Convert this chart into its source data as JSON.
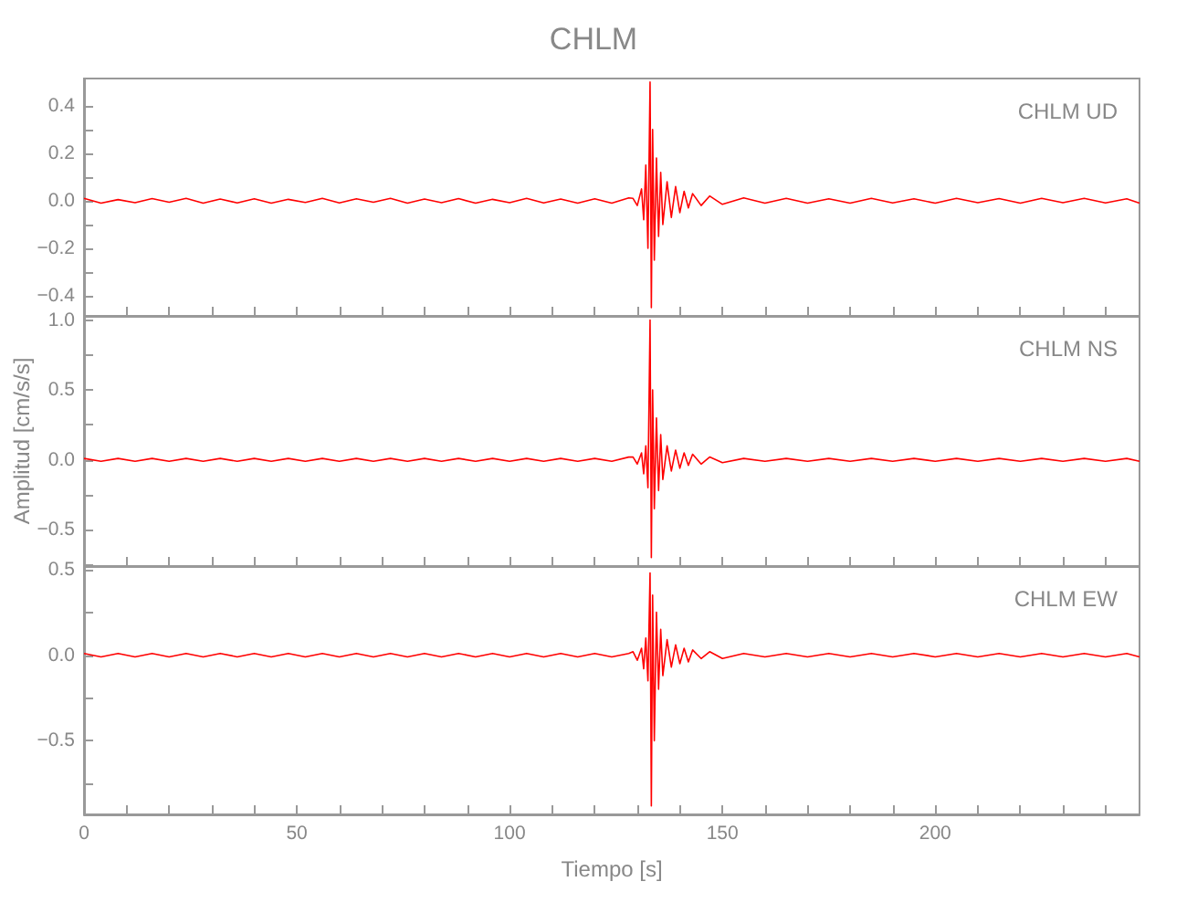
{
  "chart_data": [
    {
      "type": "line",
      "title": "CHLM",
      "annotations": [
        "CHLM UD"
      ],
      "tick_labels": "y",
      "grid": false,
      "x": [
        0,
        4,
        8,
        12,
        16,
        20,
        24,
        28,
        32,
        36,
        40,
        44,
        48,
        52,
        56,
        60,
        64,
        68,
        72,
        76,
        80,
        84,
        88,
        92,
        96,
        100,
        104,
        108,
        112,
        116,
        120,
        124,
        128,
        129,
        130,
        131,
        131.5,
        132,
        132.5,
        133,
        133.3,
        133.6,
        134,
        134.5,
        135,
        135.5,
        136,
        137,
        138,
        139,
        140,
        141,
        142,
        143,
        145,
        147,
        150,
        155,
        160,
        165,
        170,
        175,
        180,
        185,
        190,
        195,
        200,
        205,
        210,
        215,
        220,
        225,
        230,
        235,
        240,
        245,
        248
      ],
      "xlim": [
        0,
        248
      ],
      "xticks": [
        {
          "value": 0,
          "label": null
        },
        {
          "value": 10,
          "label": null
        },
        {
          "value": 20,
          "label": null
        },
        {
          "value": 30,
          "label": null
        },
        {
          "value": 40,
          "label": null
        },
        {
          "value": 50,
          "label": null
        },
        {
          "value": 60,
          "label": null
        },
        {
          "value": 70,
          "label": null
        },
        {
          "value": 80,
          "label": null
        },
        {
          "value": 90,
          "label": null
        },
        {
          "value": 100,
          "label": null
        },
        {
          "value": 110,
          "label": null
        },
        {
          "value": 120,
          "label": null
        },
        {
          "value": 130,
          "label": null
        },
        {
          "value": 140,
          "label": null
        },
        {
          "value": 150,
          "label": null
        },
        {
          "value": 160,
          "label": null
        },
        {
          "value": 170,
          "label": null
        },
        {
          "value": 180,
          "label": null
        },
        {
          "value": 190,
          "label": null
        },
        {
          "value": 200,
          "label": null
        },
        {
          "value": 210,
          "label": null
        },
        {
          "value": 220,
          "label": null
        },
        {
          "value": 230,
          "label": null
        },
        {
          "value": 240,
          "label": null
        }
      ],
      "ylim": [
        -0.485,
        0.515
      ],
      "yticks": [
        {
          "value": -0.4,
          "label": "−0.4"
        },
        {
          "value": -0.3,
          "label": null
        },
        {
          "value": -0.2,
          "label": "−0.2"
        },
        {
          "value": -0.1,
          "label": null
        },
        {
          "value": 0,
          "label": "0.0"
        },
        {
          "value": 0.1,
          "label": null
        },
        {
          "value": 0.2,
          "label": "0.2"
        },
        {
          "value": 0.3,
          "label": null
        },
        {
          "value": 0.4,
          "label": "0.4"
        }
      ],
      "series": [
        {
          "color": "#ff0000",
          "values": [
            0.01,
            -0.01,
            0.005,
            -0.008,
            0.009,
            -0.006,
            0.01,
            -0.01,
            0.007,
            -0.009,
            0.008,
            -0.01,
            0.006,
            -0.007,
            0.01,
            -0.009,
            0.008,
            -0.006,
            0.01,
            -0.01,
            0.007,
            -0.008,
            0.009,
            -0.01,
            0.006,
            -0.008,
            0.01,
            -0.009,
            0.007,
            -0.01,
            0.008,
            -0.01,
            0.012,
            0.01,
            -0.02,
            0.05,
            -0.08,
            0.15,
            -0.2,
            0.5,
            -0.45,
            0.3,
            -0.25,
            0.18,
            -0.15,
            0.12,
            -0.1,
            0.08,
            -0.07,
            0.06,
            -0.05,
            0.04,
            -0.03,
            0.03,
            -0.02,
            0.02,
            -0.015,
            0.012,
            -0.01,
            0.01,
            -0.01,
            0.008,
            -0.01,
            0.01,
            -0.009,
            0.008,
            -0.01,
            0.01,
            -0.008,
            0.009,
            -0.01,
            0.01,
            -0.008,
            0.01,
            -0.009,
            0.008,
            -0.01
          ]
        }
      ]
    },
    {
      "type": "line",
      "annotations": [
        "CHLM NS"
      ],
      "ylabel": "Amplitud [cm/s/s]",
      "tick_labels": "y",
      "grid": false,
      "x": [
        0,
        4,
        8,
        12,
        16,
        20,
        24,
        28,
        32,
        36,
        40,
        44,
        48,
        52,
        56,
        60,
        64,
        68,
        72,
        76,
        80,
        84,
        88,
        92,
        96,
        100,
        104,
        108,
        112,
        116,
        120,
        124,
        128,
        129,
        130,
        131,
        131.5,
        132,
        132.5,
        133,
        133.3,
        133.6,
        134,
        134.5,
        135,
        135.5,
        136,
        137,
        138,
        139,
        140,
        141,
        142,
        143,
        145,
        147,
        150,
        155,
        160,
        165,
        170,
        175,
        180,
        185,
        190,
        195,
        200,
        205,
        210,
        215,
        220,
        225,
        230,
        235,
        240,
        245,
        248
      ],
      "xlim": [
        0,
        248
      ],
      "xticks": [
        {
          "value": 0,
          "label": null
        },
        {
          "value": 10,
          "label": null
        },
        {
          "value": 20,
          "label": null
        },
        {
          "value": 30,
          "label": null
        },
        {
          "value": 40,
          "label": null
        },
        {
          "value": 50,
          "label": null
        },
        {
          "value": 60,
          "label": null
        },
        {
          "value": 70,
          "label": null
        },
        {
          "value": 80,
          "label": null
        },
        {
          "value": 90,
          "label": null
        },
        {
          "value": 100,
          "label": null
        },
        {
          "value": 110,
          "label": null
        },
        {
          "value": 120,
          "label": null
        },
        {
          "value": 130,
          "label": null
        },
        {
          "value": 140,
          "label": null
        },
        {
          "value": 150,
          "label": null
        },
        {
          "value": 160,
          "label": null
        },
        {
          "value": 170,
          "label": null
        },
        {
          "value": 180,
          "label": null
        },
        {
          "value": 190,
          "label": null
        },
        {
          "value": 200,
          "label": null
        },
        {
          "value": 210,
          "label": null
        },
        {
          "value": 220,
          "label": null
        },
        {
          "value": 230,
          "label": null
        },
        {
          "value": 240,
          "label": null
        }
      ],
      "ylim": [
        -0.76,
        1.03
      ],
      "yticks": [
        {
          "value": -0.75,
          "label": null
        },
        {
          "value": -0.5,
          "label": "−0.5"
        },
        {
          "value": -0.25,
          "label": null
        },
        {
          "value": 0,
          "label": "0.0"
        },
        {
          "value": 0.25,
          "label": null
        },
        {
          "value": 0.5,
          "label": "0.5"
        },
        {
          "value": 0.75,
          "label": null
        },
        {
          "value": 1,
          "label": "1.0"
        }
      ],
      "series": [
        {
          "color": "#ff0000",
          "values": [
            0.01,
            -0.01,
            0.01,
            -0.01,
            0.01,
            -0.01,
            0.01,
            -0.01,
            0.01,
            -0.01,
            0.01,
            -0.01,
            0.01,
            -0.01,
            0.01,
            -0.01,
            0.01,
            -0.01,
            0.01,
            -0.01,
            0.01,
            -0.01,
            0.01,
            -0.01,
            0.01,
            -0.01,
            0.01,
            -0.01,
            0.01,
            -0.01,
            0.01,
            -0.01,
            0.02,
            0.02,
            -0.03,
            0.05,
            -0.1,
            0.1,
            -0.2,
            1.0,
            -0.7,
            0.5,
            -0.35,
            0.3,
            -0.22,
            0.18,
            -0.14,
            0.1,
            -0.08,
            0.07,
            -0.06,
            0.05,
            -0.04,
            0.04,
            -0.03,
            0.02,
            -0.02,
            0.01,
            -0.01,
            0.01,
            -0.01,
            0.01,
            -0.01,
            0.01,
            -0.01,
            0.01,
            -0.01,
            0.01,
            -0.01,
            0.01,
            -0.01,
            0.01,
            -0.01,
            0.01,
            -0.01,
            0.01,
            -0.01
          ]
        }
      ]
    },
    {
      "type": "line",
      "annotations": [
        "CHLM EW"
      ],
      "xlabel": "Tiempo [s]",
      "grid": false,
      "x": [
        0,
        4,
        8,
        12,
        16,
        20,
        24,
        28,
        32,
        36,
        40,
        44,
        48,
        52,
        56,
        60,
        64,
        68,
        72,
        76,
        80,
        84,
        88,
        92,
        96,
        100,
        104,
        108,
        112,
        116,
        120,
        124,
        128,
        129,
        130,
        131,
        131.5,
        132,
        132.5,
        133,
        133.3,
        133.6,
        134,
        134.5,
        135,
        135.5,
        136,
        137,
        138,
        139,
        140,
        141,
        142,
        143,
        145,
        147,
        150,
        155,
        160,
        165,
        170,
        175,
        180,
        185,
        190,
        195,
        200,
        205,
        210,
        215,
        220,
        225,
        230,
        235,
        240,
        245,
        248
      ],
      "xlim": [
        0,
        248
      ],
      "xticks": [
        0,
        {
          "value": 10,
          "label": null
        },
        {
          "value": 20,
          "label": null
        },
        {
          "value": 30,
          "label": null
        },
        {
          "value": 40,
          "label": null
        },
        50,
        {
          "value": 60,
          "label": null
        },
        {
          "value": 70,
          "label": null
        },
        {
          "value": 80,
          "label": null
        },
        {
          "value": 90,
          "label": null
        },
        100,
        {
          "value": 110,
          "label": null
        },
        {
          "value": 120,
          "label": null
        },
        {
          "value": 130,
          "label": null
        },
        {
          "value": 140,
          "label": null
        },
        150,
        {
          "value": 160,
          "label": null
        },
        {
          "value": 170,
          "label": null
        },
        {
          "value": 180,
          "label": null
        },
        {
          "value": 190,
          "label": null
        },
        200,
        {
          "value": 210,
          "label": null
        },
        {
          "value": 220,
          "label": null
        },
        {
          "value": 230,
          "label": null
        },
        {
          "value": 240,
          "label": null
        }
      ],
      "ylim": [
        -0.93,
        0.52
      ],
      "yticks": [
        {
          "value": -0.75,
          "label": null
        },
        {
          "value": -0.5,
          "label": "−0.5"
        },
        {
          "value": -0.25,
          "label": null
        },
        {
          "value": 0,
          "label": "0.0"
        },
        {
          "value": 0.25,
          "label": null
        },
        {
          "value": 0.5,
          "label": "0.5"
        }
      ],
      "series": [
        {
          "color": "#ff0000",
          "values": [
            0.01,
            -0.01,
            0.01,
            -0.01,
            0.01,
            -0.01,
            0.01,
            -0.01,
            0.01,
            -0.01,
            0.01,
            -0.01,
            0.01,
            -0.01,
            0.01,
            -0.01,
            0.01,
            -0.01,
            0.01,
            -0.01,
            0.01,
            -0.01,
            0.01,
            -0.01,
            0.01,
            -0.01,
            0.01,
            -0.01,
            0.01,
            -0.01,
            0.01,
            -0.01,
            0.01,
            0.02,
            -0.03,
            0.04,
            -0.08,
            0.1,
            -0.15,
            0.48,
            -0.88,
            0.35,
            -0.5,
            0.25,
            -0.2,
            0.15,
            -0.12,
            0.09,
            -0.07,
            0.06,
            -0.05,
            0.04,
            -0.04,
            0.03,
            -0.02,
            0.02,
            -0.02,
            0.01,
            -0.01,
            0.01,
            -0.01,
            0.01,
            -0.01,
            0.01,
            -0.01,
            0.01,
            -0.01,
            0.01,
            -0.01,
            0.01,
            -0.01,
            0.01,
            -0.01,
            0.01,
            -0.01,
            0.01,
            -0.01
          ]
        }
      ]
    }
  ]
}
